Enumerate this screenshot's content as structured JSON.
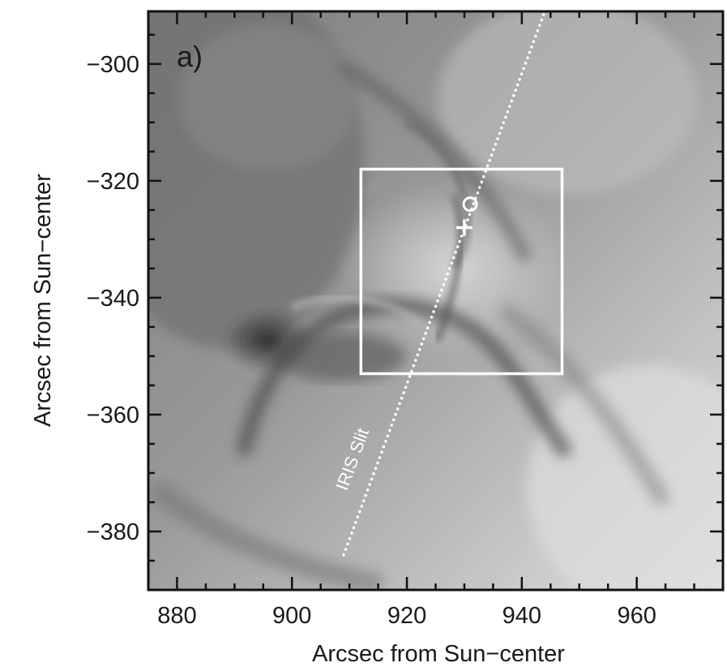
{
  "panel_label": "a)",
  "axes": {
    "xlabel": "Arcsec from Sun−center",
    "ylabel": "Arcsec from Sun−center",
    "xlim": [
      875,
      975
    ],
    "ylim": [
      -390,
      -291
    ],
    "x_ticks": [
      "880",
      "900",
      "920",
      "940",
      "960"
    ],
    "y_ticks": [
      "−300",
      "−320",
      "−340",
      "−360",
      "−380"
    ]
  },
  "annotations": {
    "slit_label": "IRIS Slit",
    "box": {
      "x_range": [
        912,
        947
      ],
      "y_range": [
        -353,
        -318
      ]
    },
    "slit_line": {
      "start": [
        909,
        -384
      ],
      "end": [
        944,
        -290
      ]
    },
    "circle_marker": {
      "x": 931,
      "y": -324
    },
    "plus_marker": {
      "x": 930,
      "y": -328
    }
  },
  "image": {
    "description_colormap": "grayscale"
  }
}
